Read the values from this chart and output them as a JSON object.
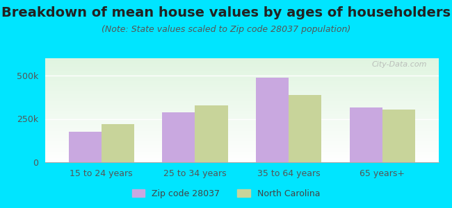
{
  "title": "Breakdown of mean house values by ages of householders",
  "subtitle": "(Note: State values scaled to Zip code 28037 population)",
  "categories": [
    "15 to 24 years",
    "25 to 34 years",
    "35 to 64 years",
    "65 years+"
  ],
  "zip_values": [
    175000,
    290000,
    490000,
    315000
  ],
  "nc_values": [
    220000,
    330000,
    390000,
    305000
  ],
  "zip_color": "#c9a8e0",
  "nc_color": "#c8d49a",
  "background_color": "#00e5ff",
  "ylim": [
    0,
    600000
  ],
  "ytick_labels": [
    "0",
    "250k",
    "500k"
  ],
  "ytick_values": [
    0,
    250000,
    500000
  ],
  "legend_zip_label": "Zip code 28037",
  "legend_nc_label": "North Carolina",
  "watermark": "City-Data.com",
  "bar_width": 0.35,
  "title_fontsize": 14,
  "subtitle_fontsize": 9,
  "tick_fontsize": 9,
  "legend_fontsize": 9
}
